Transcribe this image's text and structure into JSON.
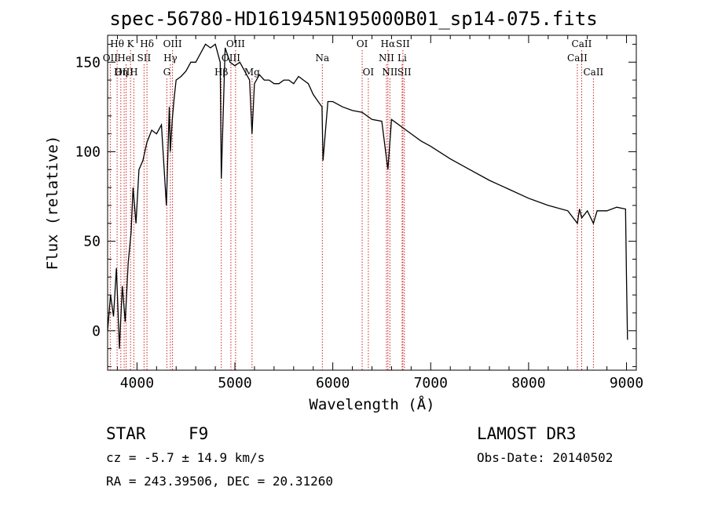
{
  "chart_data": {
    "type": "line",
    "title": "spec-56780-HD161945N195000B01_sp14-075.fits",
    "xlabel": "Wavelength (Å)",
    "ylabel": "Flux (relative)",
    "xlim": [
      3700,
      9100
    ],
    "ylim": [
      -22,
      165
    ],
    "x_ticks": [
      4000,
      5000,
      6000,
      7000,
      8000,
      9000
    ],
    "y_ticks": [
      0,
      50,
      100,
      150
    ],
    "x_tick_labels": [
      "4000",
      "5000",
      "6000",
      "7000",
      "8000",
      "9000"
    ],
    "y_tick_labels": [
      "0",
      "50",
      "100",
      "150"
    ],
    "series": [
      {
        "name": "spectrum",
        "x": [
          3700,
          3730,
          3760,
          3790,
          3820,
          3850,
          3880,
          3910,
          3940,
          3960,
          3990,
          4020,
          4060,
          4100,
          4150,
          4200,
          4250,
          4300,
          4330,
          4340,
          4360,
          4380,
          4400,
          4450,
          4500,
          4550,
          4600,
          4650,
          4700,
          4750,
          4800,
          4850,
          4861,
          4900,
          4950,
          5000,
          5050,
          5100,
          5150,
          5175,
          5200,
          5250,
          5300,
          5350,
          5400,
          5450,
          5500,
          5550,
          5600,
          5650,
          5700,
          5750,
          5800,
          5850,
          5890,
          5900,
          5950,
          6000,
          6100,
          6200,
          6300,
          6400,
          6500,
          6563,
          6600,
          6700,
          6800,
          6900,
          7000,
          7200,
          7400,
          7600,
          7800,
          8000,
          8200,
          8400,
          8498,
          8520,
          8542,
          8600,
          8662,
          8700,
          8800,
          8900,
          8990,
          9000,
          9010
        ],
        "y": [
          0,
          20,
          8,
          35,
          -10,
          25,
          5,
          38,
          55,
          80,
          60,
          90,
          95,
          105,
          112,
          110,
          115,
          70,
          125,
          100,
          118,
          130,
          140,
          142,
          145,
          150,
          150,
          155,
          160,
          158,
          160,
          150,
          85,
          158,
          150,
          148,
          150,
          145,
          140,
          110,
          138,
          143,
          140,
          140,
          138,
          138,
          140,
          140,
          138,
          142,
          140,
          138,
          132,
          128,
          125,
          95,
          128,
          128,
          125,
          123,
          122,
          118,
          117,
          90,
          118,
          114,
          110,
          106,
          103,
          96,
          90,
          84,
          79,
          74,
          70,
          67,
          60,
          68,
          63,
          67,
          60,
          67,
          67,
          69,
          68,
          30,
          -5
        ]
      }
    ],
    "lines": [
      {
        "label": "Hθ",
        "x": 3797,
        "row": 0
      },
      {
        "label": "OII",
        "x": 3727,
        "row": 1
      },
      {
        "label": "OIII",
        "x": 3869,
        "row": 2
      },
      {
        "label": "K",
        "x": 3934,
        "row": 0
      },
      {
        "label": "HeI",
        "x": 3889,
        "row": 1
      },
      {
        "label": "Hη",
        "x": 3835,
        "row": 2
      },
      {
        "label": "Hδ",
        "x": 4102,
        "row": 0
      },
      {
        "label": "SII",
        "x": 4072,
        "row": 1
      },
      {
        "label": "H",
        "x": 3968,
        "row": 2
      },
      {
        "label": "OIII",
        "x": 4363,
        "row": 0
      },
      {
        "label": "Hγ",
        "x": 4341,
        "row": 1
      },
      {
        "label": "G",
        "x": 4305,
        "row": 2
      },
      {
        "label": "OIII",
        "x": 5007,
        "row": 0
      },
      {
        "label": "OIII",
        "x": 4959,
        "row": 1
      },
      {
        "label": "Hβ",
        "x": 4861,
        "row": 2
      },
      {
        "label": "Mg",
        "x": 5175,
        "row": 2
      },
      {
        "label": "Na",
        "x": 5893,
        "row": 1
      },
      {
        "label": "OI",
        "x": 6300,
        "row": 0
      },
      {
        "label": "OI",
        "x": 6363,
        "row": 2
      },
      {
        "label": "Hα",
        "x": 6563,
        "row": 0
      },
      {
        "label": "NII",
        "x": 6548,
        "row": 1
      },
      {
        "label": "NII",
        "x": 6583,
        "row": 2
      },
      {
        "label": "SII",
        "x": 6716,
        "row": 0
      },
      {
        "label": "Li",
        "x": 6708,
        "row": 1
      },
      {
        "label": "SII",
        "x": 6731,
        "row": 2
      },
      {
        "label": "CaII",
        "x": 8542,
        "row": 0
      },
      {
        "label": "CaII",
        "x": 8498,
        "row": 1
      },
      {
        "label": "CaII",
        "x": 8662,
        "row": 2
      }
    ]
  },
  "info": {
    "object_class": "STAR",
    "subclass": "F9",
    "survey": "LAMOST DR3",
    "redshift": "cz = -5.7 ± 14.9 km/s",
    "obs_date": "Obs-Date: 20140502",
    "coords": "RA = 243.39506, DEC =  20.31260"
  }
}
